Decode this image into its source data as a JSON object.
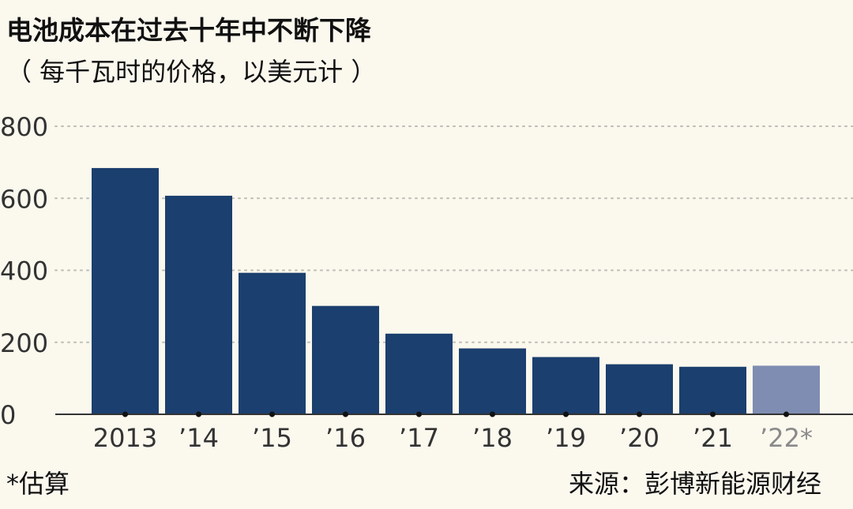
{
  "chart_data": {
    "type": "bar",
    "title": "电池成本在过去十年中不断下降",
    "subtitle": "（ 每千瓦时的价格，以美元计 ）",
    "categories": [
      "2013",
      "’14",
      "’15",
      "’16",
      "’17",
      "’18",
      "’19",
      "’20",
      "’21",
      "’22*"
    ],
    "values": [
      684,
      607,
      393,
      301,
      224,
      183,
      159,
      139,
      132,
      135
    ],
    "estimated": [
      false,
      false,
      false,
      false,
      false,
      false,
      false,
      false,
      false,
      true
    ],
    "ylim": [
      0,
      800
    ],
    "yticks": [
      0,
      200,
      400,
      600,
      800
    ],
    "xlabel": "",
    "ylabel": "",
    "grid": true,
    "colors": {
      "bar": "#1b3f6e",
      "bar_estimated": "#7e8db1",
      "grid": "#bdbdb5",
      "axis": "#333333",
      "tick_label": "#333333",
      "tick_label_estimated": "#8a8a8a"
    }
  },
  "footnote": "*估算",
  "source": "来源：彭博新能源财经"
}
